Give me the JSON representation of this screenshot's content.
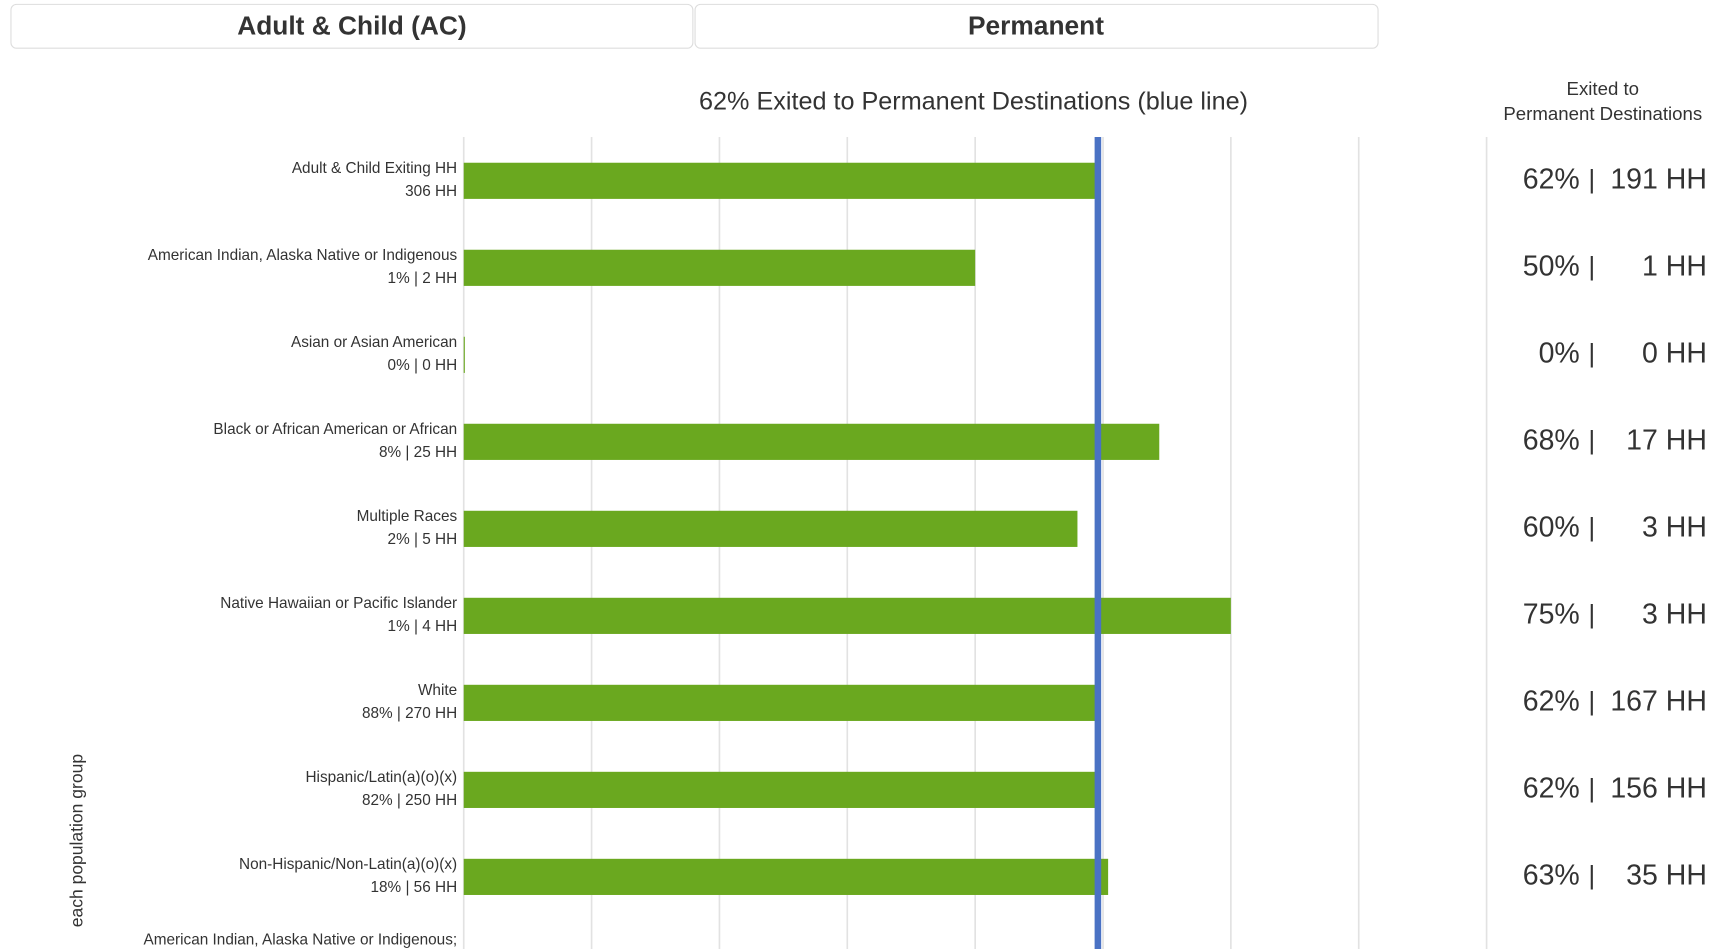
{
  "header": {
    "tabs": [
      "Adult & Child (AC)",
      "Permanent"
    ]
  },
  "chart_data": {
    "type": "bar",
    "orientation": "horizontal",
    "title": "62% Exited to Permanent Destinations (blue line)",
    "y_axis_label": "each population group",
    "right_header": [
      "Exited to",
      "Permanent Destinations"
    ],
    "categories": [
      "Adult & Child Exiting HH",
      "American Indian, Alaska Native or Indigenous",
      "Asian or Asian American",
      "Black or African American or African",
      "Multiple Races",
      "Native Hawaiian or Pacific Islander",
      "White",
      "Hispanic/Latin(a)(o)(x)",
      "Non-Hispanic/Non-Latin(a)(o)(x)"
    ],
    "sublabels": [
      "306 HH",
      "1% | 2 HH",
      "0% | 0 HH",
      "8% | 25 HH",
      "2% | 5 HH",
      "1% | 4 HH",
      "88% | 270 HH",
      "82% | 250 HH",
      "18% | 56 HH"
    ],
    "values": [
      62,
      50,
      0,
      68,
      60,
      75,
      62,
      62,
      63
    ],
    "value_labels": [
      "62%",
      "50%",
      "0%",
      "68%",
      "60%",
      "75%",
      "62%",
      "62%",
      "63%"
    ],
    "hh_labels": [
      "191 HH",
      "1 HH",
      "0 HH",
      "17 HH",
      "3 HH",
      "3 HH",
      "167 HH",
      "156 HH",
      "35 HH"
    ],
    "separator": "|",
    "partial_label": "American Indian, Alaska Native or Indigenous;",
    "color": "#6aa81f",
    "reference_line": {
      "value": 62,
      "color": "#4a72c4"
    },
    "xlim": [
      0,
      100
    ],
    "xticks": [
      0,
      12.5,
      25,
      37.5,
      50,
      62.5,
      75,
      87.5,
      100
    ],
    "grid": true
  }
}
